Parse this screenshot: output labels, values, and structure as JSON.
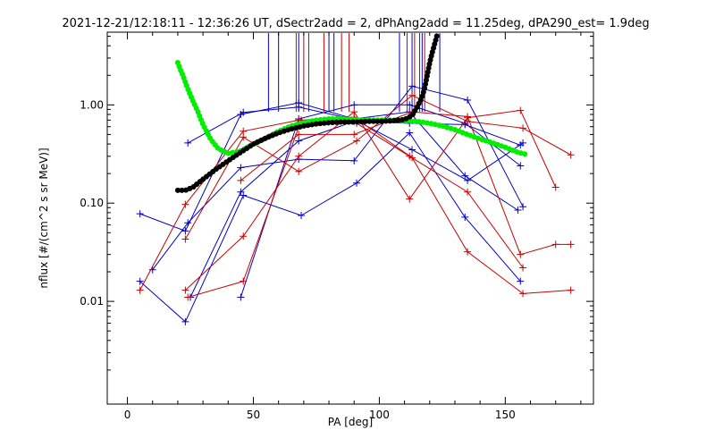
{
  "chart_data": {
    "type": "line",
    "title": "2021-12-21/12:18:11 - 12:36:26 UT, dSectr2add = 2, dPhAng2add = 11.25deg, dPA290_est=   1.9deg",
    "xlabel": "PA [deg]",
    "ylabel": "nflux [#/(cm^2 s sr MeV)]",
    "xlim": [
      -8,
      185
    ],
    "ylim": [
      0.0009,
      5.5
    ],
    "yscale": "log",
    "xticks": [
      0,
      50,
      100,
      150
    ],
    "yticks": [
      0.01,
      0.1,
      1.0
    ],
    "ytick_labels": [
      "0.01",
      "0.10",
      "1.00"
    ],
    "grid": false,
    "legend": "none",
    "colors": {
      "blue": "#0000cc",
      "red": "#cc0000",
      "black": "#000000",
      "green": "#00ee00"
    },
    "vlines": {
      "blue": [
        56,
        60,
        68,
        80,
        82,
        108,
        113,
        117,
        124
      ],
      "red": [
        67,
        70,
        72,
        78,
        85,
        88,
        111,
        114,
        116,
        118
      ]
    },
    "series": [
      {
        "color": "blue",
        "x": [
          5,
          23,
          45,
          68,
          90,
          112,
          134,
          155
        ],
        "y": [
          0.078,
          0.052,
          0.8,
          1.05,
          0.72,
          0.85,
          0.19,
          0.085
        ]
      },
      {
        "color": "blue",
        "x": [
          5,
          23,
          46,
          69,
          91,
          112,
          134,
          156
        ],
        "y": [
          0.016,
          0.0062,
          0.12,
          0.075,
          0.16,
          0.52,
          0.072,
          0.016
        ]
      },
      {
        "color": "blue",
        "x": [
          10,
          24,
          45,
          68,
          90,
          113,
          135,
          157
        ],
        "y": [
          0.021,
          0.063,
          0.23,
          0.28,
          0.27,
          1.55,
          1.12,
          0.092
        ]
      },
      {
        "color": "blue",
        "x": [
          24,
          46,
          68,
          90,
          113,
          135,
          157
        ],
        "y": [
          0.41,
          0.84,
          0.95,
          0.71,
          0.35,
          0.17,
          0.41
        ]
      },
      {
        "color": "blue",
        "x": [
          25,
          45,
          68,
          90,
          112,
          134,
          156
        ],
        "y": [
          0.011,
          0.13,
          0.43,
          0.68,
          0.65,
          0.63,
          0.39
        ]
      },
      {
        "color": "blue",
        "x": [
          45,
          68,
          90,
          112,
          134,
          156
        ],
        "y": [
          0.011,
          0.72,
          1.0,
          1.0,
          0.65,
          0.24
        ]
      },
      {
        "color": "red",
        "x": [
          5,
          23,
          46,
          68,
          91,
          112,
          135,
          157
        ],
        "y": [
          0.013,
          0.097,
          0.54,
          0.7,
          0.65,
          0.3,
          0.13,
          0.022
        ]
      },
      {
        "color": "red",
        "x": [
          23,
          46,
          68,
          91,
          113,
          135,
          157,
          176
        ],
        "y": [
          0.043,
          0.47,
          0.21,
          0.43,
          1.25,
          0.68,
          0.58,
          0.31
        ]
      },
      {
        "color": "red",
        "x": [
          23,
          46,
          68,
          90,
          112,
          135,
          156,
          170
        ],
        "y": [
          0.013,
          0.046,
          0.3,
          0.85,
          0.11,
          0.74,
          0.88,
          0.145
        ]
      },
      {
        "color": "red",
        "x": [
          24,
          46,
          69,
          90,
          113,
          135,
          157,
          176
        ],
        "y": [
          0.011,
          0.016,
          0.7,
          0.75,
          0.29,
          0.032,
          0.012,
          0.013
        ]
      },
      {
        "color": "red",
        "x": [
          45,
          68,
          90,
          113,
          135,
          156,
          170,
          176
        ],
        "y": [
          0.17,
          0.5,
          0.5,
          0.85,
          0.76,
          0.03,
          0.038,
          0.038
        ]
      }
    ],
    "fit_curves": {
      "black": {
        "x": [
          20,
          23,
          26,
          30,
          35,
          40,
          45,
          50,
          55,
          60,
          65,
          70,
          75,
          80,
          85,
          90,
          95,
          100,
          105,
          110,
          113,
          115,
          117,
          118,
          119,
          120,
          121,
          122,
          123
        ],
        "y": [
          0.135,
          0.135,
          0.145,
          0.175,
          0.22,
          0.27,
          0.33,
          0.4,
          0.46,
          0.52,
          0.57,
          0.61,
          0.64,
          0.66,
          0.67,
          0.67,
          0.68,
          0.68,
          0.69,
          0.71,
          0.78,
          0.95,
          1.2,
          1.5,
          2.0,
          2.7,
          3.4,
          4.2,
          5.2
        ]
      },
      "green": {
        "x": [
          20,
          21,
          22,
          23,
          24,
          26,
          28,
          30,
          33,
          36,
          40,
          45,
          50,
          55,
          60,
          65,
          70,
          75,
          80,
          85,
          90,
          95,
          100,
          105,
          110,
          115,
          120,
          125,
          130,
          135,
          140,
          145,
          150,
          155,
          159
        ],
        "y": [
          2.7,
          2.3,
          2.0,
          1.7,
          1.45,
          1.1,
          0.85,
          0.63,
          0.45,
          0.36,
          0.32,
          0.34,
          0.4,
          0.46,
          0.54,
          0.61,
          0.66,
          0.7,
          0.72,
          0.72,
          0.71,
          0.7,
          0.7,
          0.7,
          0.69,
          0.68,
          0.65,
          0.61,
          0.56,
          0.5,
          0.45,
          0.41,
          0.37,
          0.33,
          0.31
        ]
      }
    }
  }
}
